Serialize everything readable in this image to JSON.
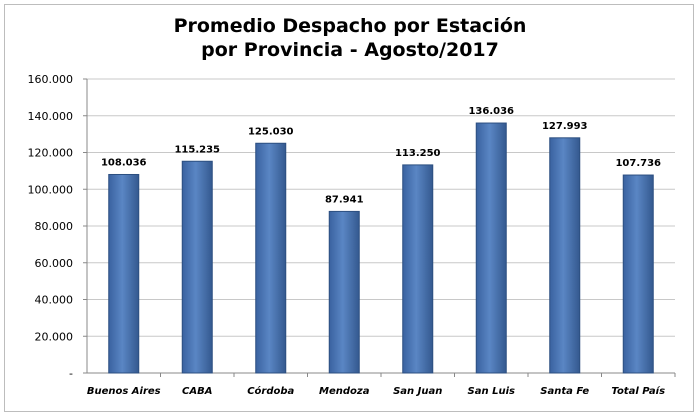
{
  "chart_data": {
    "type": "bar",
    "title_line1": "Promedio Despacho por Estación",
    "title_line2": "por Provincia - Agosto/2017",
    "categories": [
      "Buenos Aires",
      "CABA",
      "Córdoba",
      "Mendoza",
      "San Juan",
      "San Luis",
      "Santa Fe",
      "Total País"
    ],
    "values": [
      108036,
      115235,
      125030,
      87941,
      113250,
      136036,
      127993,
      107736
    ],
    "value_labels": [
      "108.036",
      "115.235",
      "125.030",
      "87.941",
      "113.250",
      "136.036",
      "127.993",
      "107.736"
    ],
    "ylim": [
      0,
      160000
    ],
    "yticks": [
      0,
      20000,
      40000,
      60000,
      80000,
      100000,
      120000,
      140000,
      160000
    ],
    "ytick_labels": [
      "-",
      "20.000",
      "40.000",
      "60.000",
      "80.000",
      "100.000",
      "120.000",
      "140.000",
      "160.000"
    ],
    "grid": true,
    "xlabel": "",
    "ylabel": "",
    "bar_color": "#4a76b2"
  }
}
